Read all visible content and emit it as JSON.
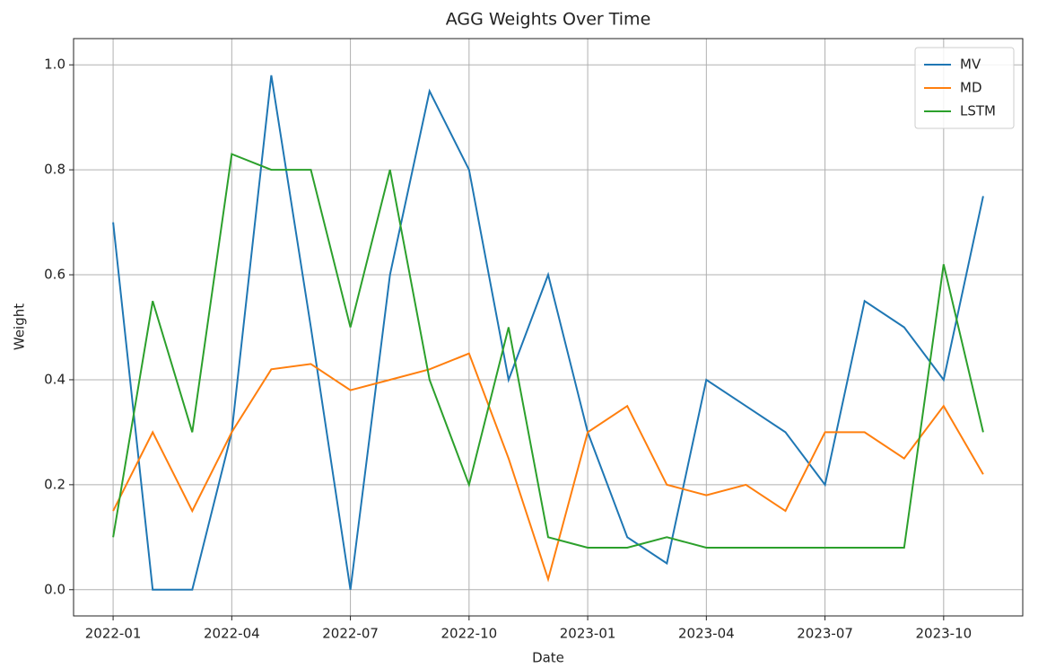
{
  "chart_data": {
    "type": "line",
    "title": "AGG Weights Over Time",
    "x_label": "Date",
    "y_label": "Weight",
    "x": [
      "2022-01",
      "2022-02",
      "2022-03",
      "2022-04",
      "2022-05",
      "2022-06",
      "2022-07",
      "2022-08",
      "2022-09",
      "2022-10",
      "2022-11",
      "2022-12",
      "2023-01",
      "2023-02",
      "2023-03",
      "2023-04",
      "2023-05",
      "2023-06",
      "2023-07",
      "2023-08",
      "2023-09",
      "2023-10",
      "2023-11"
    ],
    "series": [
      {
        "name": "MV",
        "color": "#1f77b4",
        "values": [
          0.7,
          0.0,
          0.0,
          0.3,
          0.98,
          0.5,
          0.0,
          0.6,
          0.95,
          0.8,
          0.4,
          0.6,
          0.3,
          0.1,
          0.05,
          0.4,
          0.35,
          0.3,
          0.2,
          0.55,
          0.5,
          0.4,
          0.75
        ]
      },
      {
        "name": "MD",
        "color": "#ff7f0e",
        "values": [
          0.15,
          0.3,
          0.15,
          0.3,
          0.42,
          0.43,
          0.38,
          0.4,
          0.42,
          0.45,
          0.25,
          0.02,
          0.3,
          0.35,
          0.2,
          0.18,
          0.2,
          0.15,
          0.3,
          0.3,
          0.25,
          0.35,
          0.22
        ]
      },
      {
        "name": "LSTM",
        "color": "#2ca02c",
        "values": [
          0.1,
          0.55,
          0.3,
          0.83,
          0.8,
          0.8,
          0.5,
          0.8,
          0.4,
          0.2,
          0.5,
          0.1,
          0.08,
          0.08,
          0.1,
          0.08,
          0.08,
          0.08,
          0.08,
          0.08,
          0.08,
          0.62,
          0.3
        ]
      }
    ],
    "xlim": [
      "2021-12",
      "2023-12"
    ],
    "xticks": [
      "2022-01",
      "2022-04",
      "2022-07",
      "2022-10",
      "2023-01",
      "2023-04",
      "2023-07",
      "2023-10"
    ],
    "ylim": [
      -0.05,
      1.05
    ],
    "yticks": [
      {
        "value": 0,
        "label": "0.0"
      },
      0.2,
      0.4,
      0.6,
      0.8,
      {
        "value": 1,
        "label": "1.0"
      }
    ],
    "grid": true,
    "legend": "upper right"
  }
}
